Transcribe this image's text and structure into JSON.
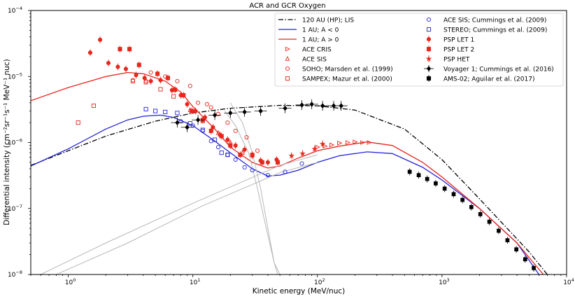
{
  "chart_data": {
    "type": "scatter",
    "title": "ACR and GCR Oxygen",
    "xlabel": "Kinetic energy (MeV/nuc)",
    "ylabel": "Differential intensity (cm⁻²sr⁻¹s⁻¹ MeV⁻¹ nuc)",
    "x_scale": "log",
    "y_scale": "log",
    "xlim": [
      0.5,
      10000
    ],
    "ylim": [
      1e-08,
      0.0001
    ],
    "x_major_ticks": [
      1,
      10,
      100,
      1000,
      10000
    ],
    "y_major_ticks": [
      1e-08,
      1e-07,
      1e-06,
      1e-05,
      0.0001
    ],
    "x_tick_labels": [
      {
        "base": "10",
        "exp": "0"
      },
      {
        "base": "10",
        "exp": "1"
      },
      {
        "base": "10",
        "exp": "2"
      },
      {
        "base": "10",
        "exp": "3"
      },
      {
        "base": "10",
        "exp": "4"
      }
    ],
    "y_tick_labels": [
      {
        "base": "10",
        "exp": "−8"
      },
      {
        "base": "10",
        "exp": "−7"
      },
      {
        "base": "10",
        "exp": "−6"
      },
      {
        "base": "10",
        "exp": "−5"
      },
      {
        "base": "10",
        "exp": "−4"
      }
    ],
    "legend_left": [
      {
        "label": "120 AU (HP); LIS",
        "key": "lis"
      },
      {
        "label": "1 AU; A < 0",
        "key": "aneg"
      },
      {
        "label": "1 AU; A > 0",
        "key": "apos"
      },
      {
        "label": "ACE CRIS",
        "key": "acecris"
      },
      {
        "label": "ACE SIS",
        "key": "acesis"
      },
      {
        "label": "SOHO; Marsden et al. (1999)",
        "key": "soho"
      },
      {
        "label": "SAMPEX; Mazur et al. (2000)",
        "key": "sampex"
      }
    ],
    "legend_right": [
      {
        "label": "ACE SIS; Cummings et al. (2009)",
        "key": "acesis09"
      },
      {
        "label": "STEREO; Cummings et al. (2009)",
        "key": "stereo"
      },
      {
        "label": "PSP LET 1",
        "key": "let1"
      },
      {
        "label": "PSP LET 2",
        "key": "let2"
      },
      {
        "label": "PSP HET",
        "key": "het"
      },
      {
        "label": "Voyager 1; Cummings et al. (2016)",
        "key": "voyager"
      },
      {
        "label": "AMS-02; Aguilar et al. (2017)",
        "key": "ams"
      }
    ],
    "colors": {
      "red": "#e8261c",
      "blue": "#2323d6",
      "black": "#000000",
      "gray": "#b8b8b8"
    },
    "lines": [
      {
        "name": "120 AU (HP); LIS",
        "color": "#000000",
        "dash": "dashdot",
        "points": [
          [
            0.5,
            4.5e-07
          ],
          [
            1,
            7.5e-07
          ],
          [
            2,
            1.25e-06
          ],
          [
            5,
            2.1e-06
          ],
          [
            10,
            2.8e-06
          ],
          [
            20,
            3.3e-06
          ],
          [
            50,
            3.65e-06
          ],
          [
            100,
            3.6e-06
          ],
          [
            200,
            3.1e-06
          ],
          [
            500,
            1.6e-06
          ],
          [
            1000,
            5.5e-07
          ],
          [
            2000,
            1.4e-07
          ],
          [
            5000,
            2.2e-08
          ],
          [
            7000,
            1e-08
          ]
        ]
      },
      {
        "name": "1 AU; A < 0",
        "color": "#2323d6",
        "dash": "solid",
        "points": [
          [
            0.5,
            4.4e-07
          ],
          [
            1,
            8e-07
          ],
          [
            2,
            1.6e-06
          ],
          [
            3,
            2.2e-06
          ],
          [
            4,
            2.5e-06
          ],
          [
            5.5,
            2.6e-06
          ],
          [
            7,
            2.4e-06
          ],
          [
            10,
            1.8e-06
          ],
          [
            15,
            1.05e-06
          ],
          [
            20,
            7e-07
          ],
          [
            30,
            4e-07
          ],
          [
            40,
            3.1e-07
          ],
          [
            50,
            3.2e-07
          ],
          [
            70,
            3.8e-07
          ],
          [
            100,
            5e-07
          ],
          [
            150,
            6.3e-07
          ],
          [
            250,
            7.2e-07
          ],
          [
            400,
            6.8e-07
          ],
          [
            700,
            4.2e-07
          ],
          [
            1000,
            2.7e-07
          ],
          [
            2000,
            1e-07
          ],
          [
            4000,
            3e-08
          ],
          [
            6000,
            1e-08
          ]
        ]
      },
      {
        "name": "1 AU; A > 0",
        "color": "#e8261c",
        "dash": "solid",
        "points": [
          [
            0.5,
            4.3e-06
          ],
          [
            1,
            6.8e-06
          ],
          [
            2,
            1e-05
          ],
          [
            3,
            1.15e-05
          ],
          [
            4,
            1.1e-05
          ],
          [
            6,
            8.5e-06
          ],
          [
            8,
            5.8e-06
          ],
          [
            10,
            3.5e-06
          ],
          [
            15,
            1.6e-06
          ],
          [
            20,
            8.5e-07
          ],
          [
            30,
            5e-07
          ],
          [
            40,
            4.1e-07
          ],
          [
            50,
            4.4e-07
          ],
          [
            70,
            5.8e-07
          ],
          [
            100,
            7.5e-07
          ],
          [
            150,
            8.8e-07
          ],
          [
            250,
            1.02e-06
          ],
          [
            400,
            9e-07
          ],
          [
            700,
            5e-07
          ],
          [
            1000,
            3e-07
          ],
          [
            2000,
            1e-07
          ],
          [
            4000,
            3e-08
          ],
          [
            6500,
            1e-08
          ]
        ]
      },
      {
        "name": "component 1",
        "color": "#b8b8b8",
        "dash": "solid",
        "points": [
          [
            20,
            4e-06
          ],
          [
            25,
            2e-06
          ],
          [
            30,
            7e-07
          ],
          [
            35,
            2e-07
          ],
          [
            40,
            5e-08
          ],
          [
            45,
            1.5e-08
          ],
          [
            48,
            1e-08
          ]
        ]
      },
      {
        "name": "component 2",
        "color": "#b8b8b8",
        "dash": "solid",
        "points": [
          [
            18,
            3e-06
          ],
          [
            22,
            1.8e-06
          ],
          [
            28,
            7e-07
          ],
          [
            33,
            2e-07
          ],
          [
            38,
            6e-08
          ],
          [
            45,
            1.5e-08
          ],
          [
            50,
            1e-08
          ]
        ]
      },
      {
        "name": "component 3",
        "color": "#b8b8b8",
        "dash": "solid",
        "points": [
          [
            0.6,
            1e-08
          ],
          [
            2,
            3e-08
          ],
          [
            10,
            1.2e-07
          ],
          [
            50,
            4.5e-07
          ],
          [
            100,
            6.5e-07
          ]
        ]
      },
      {
        "name": "component 4",
        "color": "#b8b8b8",
        "dash": "solid",
        "points": [
          [
            0.8,
            1e-08
          ],
          [
            3,
            3e-08
          ],
          [
            12,
            1.1e-07
          ],
          [
            50,
            3.5e-07
          ],
          [
            100,
            5e-07
          ]
        ]
      }
    ],
    "series": [
      {
        "name": "ACE CRIS",
        "marker": "triangle-right",
        "color": "#e8261c",
        "filled": false,
        "points": [
          [
            100,
            8.5e-07
          ],
          [
            115,
            8.8e-07
          ],
          [
            130,
            9.2e-07
          ],
          [
            150,
            9.8e-07
          ],
          [
            175,
            1e-06
          ],
          [
            200,
            1.02e-06
          ],
          [
            230,
            1e-06
          ],
          [
            260,
            1e-06
          ]
        ]
      },
      {
        "name": "ACE SIS",
        "marker": "triangle-up",
        "color": "#e8261c",
        "filled": false,
        "points": [
          [
            9.5,
            3.1e-06
          ],
          [
            12,
            2.1e-06
          ],
          [
            16,
            1.4e-06
          ],
          [
            20,
            1e-06
          ],
          [
            25,
            7e-07
          ]
        ]
      },
      {
        "name": "SOHO; Marsden et al. (1999)",
        "marker": "circle",
        "color": "#e8261c",
        "filled": false,
        "points": [
          [
            3.3,
            8.8e-06
          ],
          [
            4.2,
            8.5e-06
          ],
          [
            4.6,
            1.15e-05
          ],
          [
            6,
            1e-05
          ],
          [
            7.5,
            8.5e-06
          ],
          [
            9.5,
            7.2e-06
          ],
          [
            11,
            4e-06
          ],
          [
            13,
            3.8e-06
          ],
          [
            14,
            3.4e-06
          ],
          [
            16,
            2.7e-06
          ],
          [
            19,
            2e-06
          ],
          [
            22,
            1.5e-06
          ],
          [
            27,
            1.2e-06
          ],
          [
            33,
            7.5e-07
          ]
        ]
      },
      {
        "name": "SAMPEX; Mazur et al. (2000)",
        "marker": "square",
        "color": "#e8261c",
        "filled": false,
        "points": [
          [
            1.2,
            2e-06
          ],
          [
            1.6,
            3.6e-06
          ],
          [
            3.3,
            8.5e-06
          ],
          [
            4.2,
            8.2e-06
          ],
          [
            5.5,
            6.4e-06
          ],
          [
            7,
            5e-06
          ]
        ]
      },
      {
        "name": "ACE SIS; Cummings et al. (2009)",
        "marker": "circle",
        "color": "#2323d6",
        "filled": false,
        "points": [
          [
            8,
            2.1e-06
          ],
          [
            10,
            1.8e-06
          ],
          [
            12,
            1.5e-06
          ],
          [
            14,
            1.05e-06
          ],
          [
            16,
            8.5e-07
          ],
          [
            19,
            6.5e-07
          ],
          [
            22,
            5.5e-07
          ],
          [
            26,
            4.2e-07
          ],
          [
            30,
            3.8e-07
          ],
          [
            40,
            3.2e-07
          ],
          [
            55,
            3.6e-07
          ],
          [
            75,
            4.8e-07
          ]
        ]
      },
      {
        "name": "STEREO; Cummings et al. (2009)",
        "marker": "square",
        "color": "#2323d6",
        "filled": false,
        "points": [
          [
            4.2,
            3.2e-06
          ],
          [
            5,
            3e-06
          ],
          [
            6,
            2.9e-06
          ],
          [
            7.5,
            2.8e-06
          ],
          [
            9.5,
            1.95e-06
          ],
          [
            12,
            1.55e-06
          ],
          [
            15,
            1.1e-06
          ],
          [
            17,
            7e-07
          ],
          [
            19,
            6.5e-07
          ]
        ]
      },
      {
        "name": "PSP LET 1",
        "marker": "circle",
        "color": "#e8261c",
        "filled": true,
        "points": [
          [
            1.5,
            2.3e-05
          ],
          [
            1.8,
            3.6e-05
          ],
          [
            2.1,
            1.6e-05
          ],
          [
            2.5,
            1.4e-05
          ],
          [
            2.9,
            1.3e-05
          ],
          [
            3.5,
            1.05e-05
          ],
          [
            4.1,
            9.5e-06
          ],
          [
            4.6,
            8.5e-06
          ],
          [
            5.5,
            8.8e-06
          ],
          [
            6.8,
            6.2e-06
          ],
          [
            8,
            5.2e-06
          ],
          [
            9,
            3.8e-06
          ],
          [
            10.5,
            3e-06
          ],
          [
            12.5,
            2.4e-06
          ],
          [
            14.5,
            1.7e-06
          ],
          [
            16.5,
            1.3e-06
          ],
          [
            19,
            1.1e-06
          ],
          [
            22,
            9e-07
          ],
          [
            26,
            7.8e-07
          ],
          [
            30,
            6.3e-07
          ],
          [
            35,
            5.3e-07
          ],
          [
            40,
            5e-07
          ],
          [
            47,
            5.5e-07
          ]
        ]
      },
      {
        "name": "PSP LET 2",
        "marker": "square",
        "color": "#e8261c",
        "filled": true,
        "points": [
          [
            2.6,
            2.6e-05
          ],
          [
            3.1,
            2.6e-05
          ],
          [
            3.7,
            1.5e-05
          ],
          [
            5.2,
            1.1e-05
          ],
          [
            6.3,
            9.5e-06
          ],
          [
            7.2,
            6.3e-06
          ],
          [
            8.4,
            5.2e-06
          ],
          [
            9.8,
            3e-06
          ],
          [
            12,
            2.2e-06
          ],
          [
            14,
            1.5e-06
          ],
          [
            17,
            1.25e-06
          ],
          [
            20,
            9e-07
          ],
          [
            24,
            6.5e-07
          ],
          [
            30,
            6.5e-07
          ],
          [
            36,
            5e-07
          ],
          [
            48,
            5e-07
          ]
        ]
      },
      {
        "name": "PSP HET",
        "marker": "star",
        "color": "#e8261c",
        "filled": true,
        "points": [
          [
            62,
            6.3e-07
          ],
          [
            76,
            6.8e-07
          ],
          [
            95,
            8e-07
          ],
          [
            110,
            9.5e-07
          ]
        ]
      },
      {
        "name": "Voyager 1; Cummings et al. (2016)",
        "marker": "diamond",
        "color": "#000000",
        "filled": true,
        "points": [
          [
            7.5,
            2e-06
          ],
          [
            9,
            1.7e-06
          ],
          [
            11,
            2.2e-06
          ],
          [
            15,
            2.6e-06
          ],
          [
            20,
            2.8e-06
          ],
          [
            26,
            2.9e-06
          ],
          [
            35,
            3e-06
          ],
          [
            55,
            3.3e-06
          ],
          [
            75,
            3.7e-06
          ],
          [
            90,
            3.8e-06
          ],
          [
            110,
            3.6e-06
          ],
          [
            135,
            3.6e-06
          ],
          [
            155,
            3.6e-06
          ]
        ]
      },
      {
        "name": "AMS-02; Aguilar et al. (2017)",
        "marker": "square",
        "color": "#000000",
        "filled": true,
        "points": [
          [
            550,
            3.6e-07
          ],
          [
            650,
            3.2e-07
          ],
          [
            760,
            2.8e-07
          ],
          [
            890,
            2.4e-07
          ],
          [
            1050,
            2e-07
          ],
          [
            1240,
            1.65e-07
          ],
          [
            1460,
            1.35e-07
          ],
          [
            1720,
            1.05e-07
          ],
          [
            2030,
            8.2e-08
          ],
          [
            2400,
            6.3e-08
          ],
          [
            2850,
            4.6e-08
          ],
          [
            3350,
            3.3e-08
          ],
          [
            3950,
            2.4e-08
          ],
          [
            4650,
            1.7e-08
          ],
          [
            5450,
            1.25e-08
          ],
          [
            6400,
            9e-09
          ]
        ]
      }
    ]
  }
}
